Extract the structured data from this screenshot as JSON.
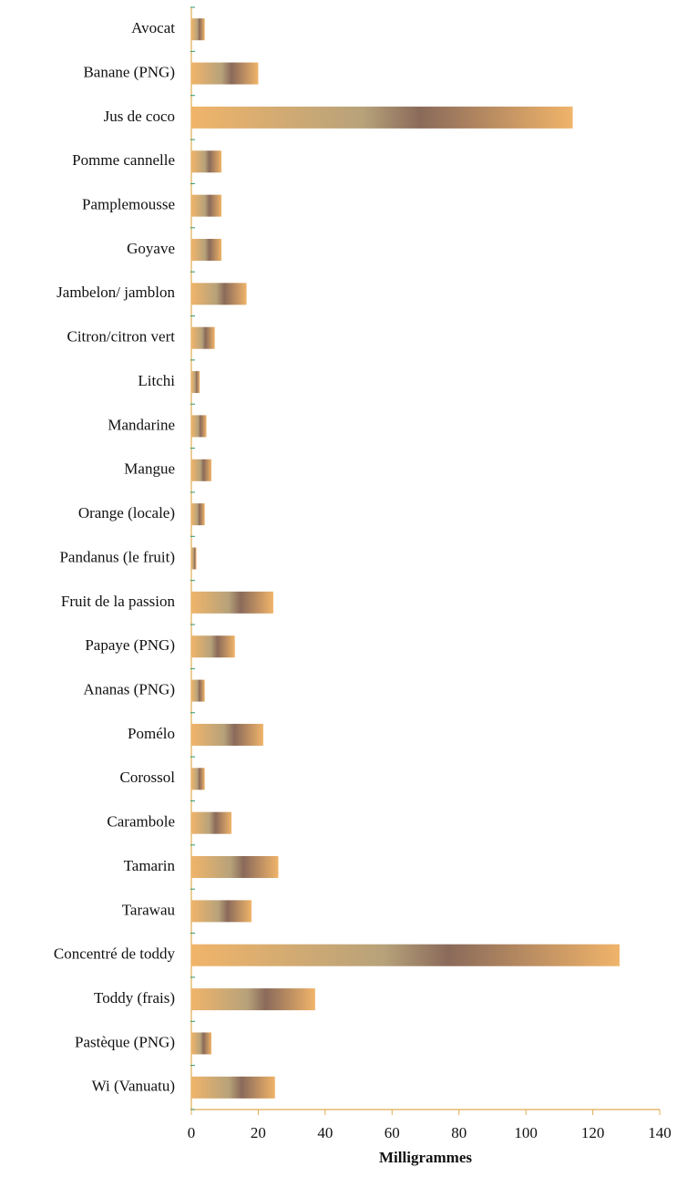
{
  "chart_data": {
    "type": "bar",
    "orientation": "horizontal",
    "categories": [
      "Avocat",
      "Banane (PNG)",
      "Jus de coco",
      "Pomme cannelle",
      "Pamplemousse",
      "Goyave",
      "Jambelon/ jamblon",
      "Citron/citron vert",
      "Litchi",
      "Mandarine",
      "Mangue",
      "Orange (locale)",
      "Pandanus (le fruit)",
      "Fruit de la passion",
      "Papaye (PNG)",
      "Ananas (PNG)",
      "Pomélo",
      "Corossol",
      "Carambole",
      "Tamarin",
      "Tarawau",
      "Concentré de toddy",
      "Toddy (frais)",
      "Pastèque (PNG)",
      "Wi (Vanuatu)"
    ],
    "values": [
      4,
      20,
      114,
      9,
      9,
      9,
      16.5,
      7,
      2.5,
      4.5,
      6,
      4,
      1.5,
      24.5,
      13,
      4,
      21.5,
      4,
      12,
      26,
      18,
      128,
      37,
      6,
      25
    ],
    "color": "#f0b46a",
    "xlabel": "Milligrammes",
    "xlim": [
      0,
      140
    ],
    "xticks": [
      0,
      20,
      40,
      60,
      80,
      100,
      120,
      140
    ]
  }
}
